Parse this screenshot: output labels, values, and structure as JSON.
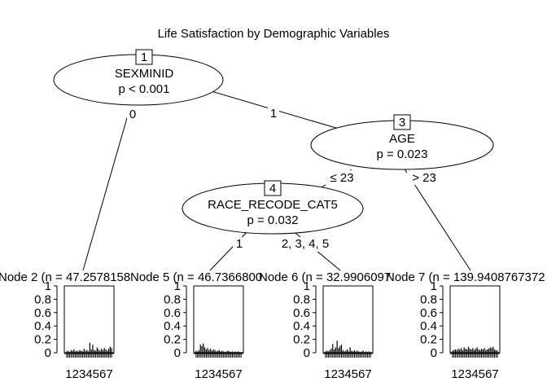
{
  "title": "Life Satisfaction by Demographic Variables",
  "inner_nodes": [
    {
      "id": "1",
      "variable": "SEXMINID",
      "pvalue": "p < 0.001"
    },
    {
      "id": "3",
      "variable": "AGE",
      "pvalue": "p = 0.023"
    },
    {
      "id": "4",
      "variable": "RACE_RECODE_CAT5",
      "pvalue": "p = 0.032"
    }
  ],
  "edge_labels": {
    "n1_left": "0",
    "n1_right": "1",
    "n3_left": "≤ 23",
    "n3_right": "> 23",
    "n4_left": "1",
    "n4_right": "2, 3, 4, 5"
  },
  "terminal_nodes": [
    {
      "label": "Node 2 (n = 47.2578158"
    },
    {
      "label": "Node 5 (n = 46.7366800"
    },
    {
      "label": "Node 6 (n = 32.9906097"
    },
    {
      "label": "Node 7 (n = 139.9408767372"
    }
  ],
  "panel_y_ticks": [
    "1",
    "0.8",
    "0.6",
    "0.4",
    "0.2",
    "0"
  ],
  "panel_x_label": "1234567",
  "chart_data": [
    {
      "type": "bar",
      "title": "Node 2",
      "ylim": [
        0,
        1
      ],
      "values": [
        0.02,
        0.03,
        0.01,
        0.04,
        0.03,
        0.05,
        0.02,
        0.03,
        0.02,
        0.04,
        0.03,
        0.02,
        0.06,
        0.03,
        0.04,
        0.02,
        0.15,
        0.05,
        0.12,
        0.04,
        0.03,
        0.08,
        0.05,
        0.03,
        0.06,
        0.04,
        0.07,
        0.05,
        0.03,
        0.06,
        0.09,
        0.07
      ]
    },
    {
      "type": "bar",
      "title": "Node 5",
      "ylim": [
        0,
        1
      ],
      "values": [
        0.03,
        0.02,
        0.04,
        0.12,
        0.1,
        0.14,
        0.08,
        0.05,
        0.07,
        0.04,
        0.06,
        0.03,
        0.05,
        0.04,
        0.02,
        0.03,
        0.04,
        0.02,
        0.03,
        0.02,
        0.01,
        0.02,
        0.03,
        0.02,
        0.01,
        0.02,
        0.01,
        0.02,
        0.01,
        0.02,
        0.01,
        0.01
      ]
    },
    {
      "type": "bar",
      "title": "Node 6",
      "ylim": [
        0,
        1
      ],
      "values": [
        0.02,
        0.03,
        0.02,
        0.04,
        0.06,
        0.13,
        0.05,
        0.08,
        0.18,
        0.07,
        0.1,
        0.12,
        0.04,
        0.02,
        0.03,
        0.05,
        0.02,
        0.08,
        0.03,
        0.02,
        0.04,
        0.02,
        0.03,
        0.02,
        0.01,
        0.02,
        0.03,
        0.01,
        0.02,
        0.01,
        0.02,
        0.01
      ]
    },
    {
      "type": "bar",
      "title": "Node 7",
      "ylim": [
        0,
        1
      ],
      "values": [
        0.03,
        0.04,
        0.05,
        0.04,
        0.06,
        0.05,
        0.07,
        0.04,
        0.08,
        0.06,
        0.05,
        0.09,
        0.06,
        0.05,
        0.07,
        0.04,
        0.06,
        0.08,
        0.05,
        0.04,
        0.06,
        0.05,
        0.07,
        0.04,
        0.05,
        0.06,
        0.08,
        0.07,
        0.09,
        0.05,
        0.04,
        0.03
      ]
    }
  ]
}
